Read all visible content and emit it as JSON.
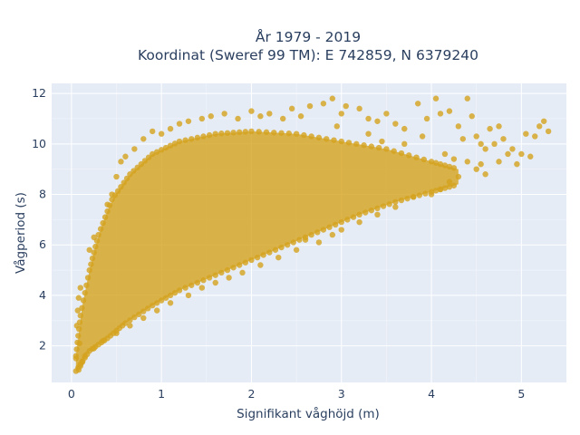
{
  "chart_data": {
    "type": "scatter",
    "title_lines": [
      "År 1979 - 2019",
      "Koordinat (Sweref 99 TM): E 742859, N 6379240"
    ],
    "xlabel": "Signifikant våghöjd (m)",
    "ylabel": "Vågperiod (s)",
    "xlim": [
      -0.22,
      5.5
    ],
    "ylim": [
      0.55,
      12.4
    ],
    "x_ticks": [
      0,
      1,
      2,
      3,
      4,
      5
    ],
    "y_ticks": [
      2,
      4,
      6,
      8,
      10,
      12
    ],
    "grid": true,
    "plot_background": "#e5ecf6",
    "marker_color": "#d4a21e",
    "marker_opacity": 0.8,
    "cloud_outline": {
      "upper": [
        [
          0.05,
          1.6
        ],
        [
          0.1,
          3.2
        ],
        [
          0.2,
          5.0
        ],
        [
          0.3,
          6.4
        ],
        [
          0.45,
          7.8
        ],
        [
          0.65,
          8.8
        ],
        [
          0.9,
          9.6
        ],
        [
          1.2,
          10.1
        ],
        [
          1.6,
          10.4
        ],
        [
          2.0,
          10.5
        ],
        [
          2.5,
          10.4
        ],
        [
          3.0,
          10.1
        ],
        [
          3.5,
          9.8
        ],
        [
          4.0,
          9.3
        ],
        [
          4.3,
          9.0
        ]
      ],
      "lower": [
        [
          0.05,
          1.0
        ],
        [
          0.2,
          1.8
        ],
        [
          0.4,
          2.3
        ],
        [
          0.6,
          2.9
        ],
        [
          0.9,
          3.6
        ],
        [
          1.2,
          4.2
        ],
        [
          1.6,
          4.8
        ],
        [
          2.0,
          5.4
        ],
        [
          2.4,
          6.0
        ],
        [
          2.8,
          6.6
        ],
        [
          3.2,
          7.2
        ],
        [
          3.6,
          7.7
        ],
        [
          4.0,
          8.1
        ],
        [
          4.3,
          8.4
        ]
      ]
    },
    "points": [
      [
        0.08,
        1.05
      ],
      [
        0.1,
        1.2
      ],
      [
        0.12,
        1.35
      ],
      [
        0.05,
        1.5
      ],
      [
        0.09,
        2.1
      ],
      [
        0.15,
        1.6
      ],
      [
        0.06,
        2.8
      ],
      [
        0.07,
        3.4
      ],
      [
        0.08,
        3.9
      ],
      [
        0.1,
        4.3
      ],
      [
        0.2,
        5.8
      ],
      [
        0.25,
        6.3
      ],
      [
        0.4,
        7.6
      ],
      [
        0.45,
        8.0
      ],
      [
        0.5,
        8.7
      ],
      [
        0.55,
        9.3
      ],
      [
        0.6,
        9.5
      ],
      [
        0.7,
        9.8
      ],
      [
        0.8,
        10.2
      ],
      [
        0.9,
        10.5
      ],
      [
        1.0,
        10.4
      ],
      [
        1.1,
        10.6
      ],
      [
        1.2,
        10.8
      ],
      [
        1.3,
        10.9
      ],
      [
        1.45,
        11.0
      ],
      [
        1.55,
        11.1
      ],
      [
        1.7,
        11.2
      ],
      [
        1.85,
        11.0
      ],
      [
        2.0,
        11.3
      ],
      [
        2.1,
        11.1
      ],
      [
        2.2,
        11.2
      ],
      [
        2.35,
        11.0
      ],
      [
        2.45,
        11.4
      ],
      [
        2.55,
        11.1
      ],
      [
        2.65,
        11.5
      ],
      [
        2.8,
        11.6
      ],
      [
        2.9,
        11.8
      ],
      [
        3.0,
        11.2
      ],
      [
        3.05,
        11.5
      ],
      [
        3.2,
        11.4
      ],
      [
        3.3,
        11.0
      ],
      [
        3.4,
        10.9
      ],
      [
        3.5,
        11.2
      ],
      [
        3.6,
        10.8
      ],
      [
        3.7,
        10.6
      ],
      [
        3.85,
        11.6
      ],
      [
        3.95,
        11.0
      ],
      [
        4.05,
        11.8
      ],
      [
        4.1,
        11.2
      ],
      [
        4.2,
        11.3
      ],
      [
        4.3,
        10.7
      ],
      [
        4.35,
        10.2
      ],
      [
        4.45,
        11.1
      ],
      [
        4.4,
        11.8
      ],
      [
        4.5,
        10.3
      ],
      [
        4.55,
        10.0
      ],
      [
        4.6,
        9.8
      ],
      [
        4.65,
        10.6
      ],
      [
        4.7,
        10.0
      ],
      [
        4.75,
        10.7
      ],
      [
        4.8,
        10.2
      ],
      [
        4.85,
        9.6
      ],
      [
        4.9,
        9.8
      ],
      [
        5.0,
        9.6
      ],
      [
        5.05,
        10.4
      ],
      [
        5.1,
        9.5
      ],
      [
        5.15,
        10.3
      ],
      [
        4.95,
        9.2
      ],
      [
        5.3,
        10.5
      ],
      [
        5.25,
        10.9
      ],
      [
        5.2,
        10.7
      ],
      [
        4.4,
        9.3
      ],
      [
        4.5,
        9.0
      ],
      [
        4.3,
        8.7
      ],
      [
        4.2,
        8.5
      ],
      [
        4.1,
        8.2
      ],
      [
        4.0,
        8.0
      ],
      [
        4.55,
        9.2
      ],
      [
        4.75,
        9.3
      ],
      [
        4.6,
        8.8
      ],
      [
        3.8,
        7.9
      ],
      [
        3.6,
        7.5
      ],
      [
        3.4,
        7.2
      ],
      [
        3.2,
        6.9
      ],
      [
        3.0,
        6.6
      ],
      [
        2.9,
        6.4
      ],
      [
        2.75,
        6.1
      ],
      [
        2.6,
        6.2
      ],
      [
        2.5,
        5.8
      ],
      [
        2.3,
        5.5
      ],
      [
        2.1,
        5.2
      ],
      [
        1.9,
        4.9
      ],
      [
        1.75,
        4.7
      ],
      [
        1.6,
        4.5
      ],
      [
        1.45,
        4.3
      ],
      [
        1.3,
        4.0
      ],
      [
        1.1,
        3.7
      ],
      [
        0.95,
        3.4
      ],
      [
        0.8,
        3.1
      ],
      [
        0.65,
        2.8
      ],
      [
        0.5,
        2.5
      ],
      [
        0.35,
        2.2
      ],
      [
        0.25,
        1.9
      ],
      [
        3.7,
        10.0
      ],
      [
        3.9,
        10.3
      ],
      [
        4.15,
        9.6
      ],
      [
        4.25,
        9.4
      ],
      [
        3.3,
        10.4
      ],
      [
        3.45,
        10.1
      ],
      [
        2.95,
        10.7
      ]
    ]
  }
}
